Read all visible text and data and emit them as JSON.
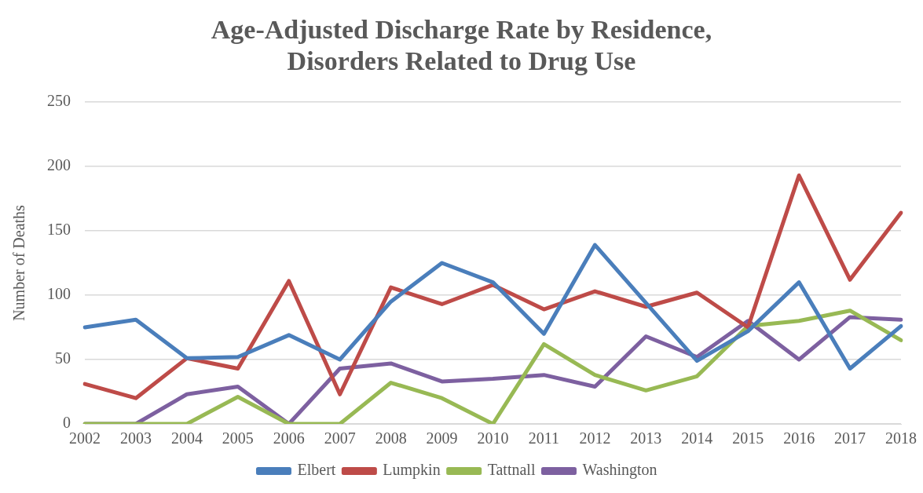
{
  "chart_data": {
    "type": "line",
    "title": "Age-Adjusted Discharge Rate by Residence, Disorders Related to Drug Use",
    "ylabel": "Number of Deaths",
    "categories": [
      "2002",
      "2003",
      "2004",
      "2005",
      "2006",
      "2007",
      "2008",
      "2009",
      "2010",
      "2011",
      "2012",
      "2013",
      "2014",
      "2015",
      "2016",
      "2017",
      "2018"
    ],
    "series": [
      {
        "name": "Elbert",
        "color": "#4a7ebb",
        "values": [
          75,
          81,
          51,
          52,
          69,
          50,
          95,
          125,
          110,
          70,
          139,
          94,
          49,
          72,
          110,
          43,
          76
        ]
      },
      {
        "name": "Lumpkin",
        "color": "#be4b48",
        "values": [
          31,
          20,
          51,
          43,
          111,
          23,
          106,
          93,
          108,
          89,
          103,
          91,
          102,
          75,
          193,
          112,
          164
        ]
      },
      {
        "name": "Tattnall",
        "color": "#98b954",
        "values": [
          0,
          0,
          0,
          21,
          0,
          0,
          32,
          20,
          0,
          62,
          38,
          26,
          37,
          76,
          80,
          88,
          65
        ]
      },
      {
        "name": "Washington",
        "color": "#7d60a0",
        "values": [
          0,
          0,
          23,
          29,
          0,
          43,
          47,
          33,
          35,
          38,
          29,
          68,
          52,
          80,
          50,
          83,
          81
        ]
      }
    ],
    "ylim": [
      0,
      250
    ],
    "yticks": [
      0,
      50,
      100,
      150,
      200,
      250
    ],
    "grid": "y",
    "legend": "bottom",
    "marker": "none",
    "line_style": "solid"
  }
}
